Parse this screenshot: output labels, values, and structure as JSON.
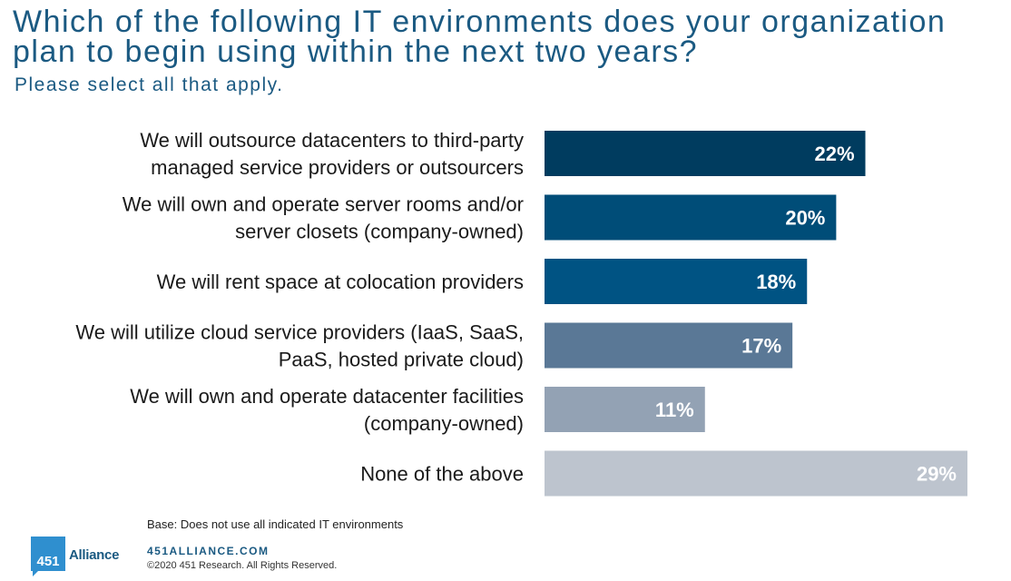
{
  "title": "Which of the following IT environments does your organization plan to begin using within the next two years?",
  "title_lines": [
    "Which of the following IT environments does your organization",
    "plan to begin using within the next two years?"
  ],
  "subtitle": "Please select all that apply.",
  "chart_data": {
    "type": "bar",
    "orientation": "horizontal",
    "categories": [
      [
        "We will outsource datacenters to third-party",
        "managed service providers or outsourcers"
      ],
      [
        "We will own and operate server rooms and/or",
        "server closets (company-owned)"
      ],
      [
        "We will rent space at colocation providers"
      ],
      [
        "We will utilize cloud service providers (IaaS, SaaS,",
        "PaaS, hosted private cloud)"
      ],
      [
        "We will own and operate datacenter facilities",
        "(company-owned)"
      ],
      [
        "None of the above"
      ]
    ],
    "values": [
      22,
      20,
      18,
      17,
      11,
      29
    ],
    "value_labels": [
      "22%",
      "20%",
      "18%",
      "17%",
      "11%",
      "29%"
    ],
    "unit": "%",
    "xlim": [
      0,
      29
    ],
    "colors": [
      "#003c5f",
      "#004d78",
      "#005383",
      "#5a7896",
      "#93a2b4",
      "#bdc4ce"
    ],
    "grid": false,
    "legend": "none"
  },
  "footer": {
    "base": "Base: Does not use all indicated IT environments",
    "logo_number": "451",
    "logo_word": "Alliance",
    "site": "451ALLIANCE.COM",
    "copyright": "©2020 451 Research. All Rights Reserved."
  }
}
